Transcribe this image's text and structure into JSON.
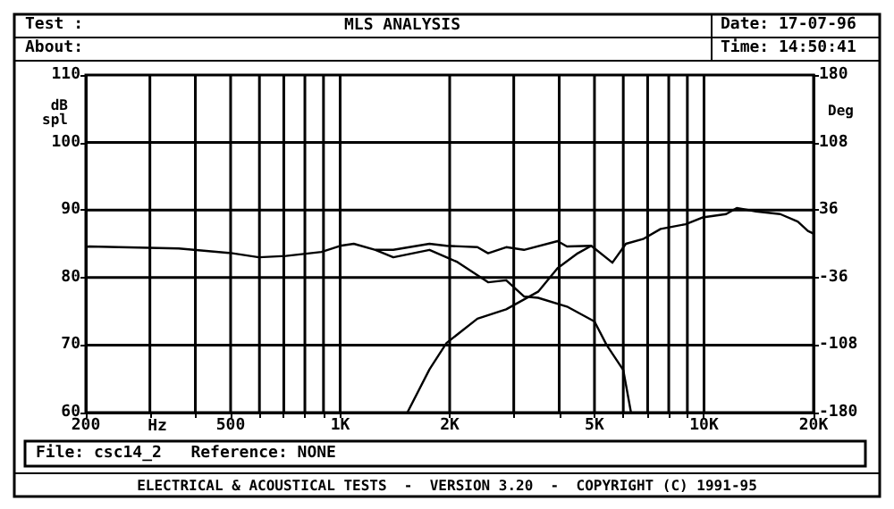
{
  "chart_data": {
    "type": "line",
    "title": "MLS ANALYSIS",
    "xlabel": "Hz",
    "ylabel": "dB spl",
    "y2label": "Deg",
    "annotations": [
      "Test :",
      "About:",
      "Date: 17-07-96",
      "Time: 14:50:41",
      "File: csc14_2   Reference: NONE",
      "ELECTRICAL & ACOUSTICAL TESTS  -  VERSION 3.20  -  COPYRIGHT (C) 1991-95"
    ],
    "log": "x",
    "grid": true,
    "marker": "none",
    "line_style": "solid",
    "xlim": [
      200,
      20000
    ],
    "xticks": [
      200,
      {
        "value": 300,
        "label": null
      },
      {
        "value": 400,
        "label": null
      },
      500,
      {
        "value": 600,
        "label": null
      },
      {
        "value": 700,
        "label": null
      },
      {
        "value": 800,
        "label": null
      },
      {
        "value": 900,
        "label": null
      },
      {
        "value": 1000,
        "label": "1K"
      },
      {
        "value": 2000,
        "label": "2K"
      },
      {
        "value": 3000,
        "label": null
      },
      {
        "value": 4000,
        "label": null
      },
      {
        "value": 5000,
        "label": "5K"
      },
      {
        "value": 6000,
        "label": null
      },
      {
        "value": 7000,
        "label": null
      },
      {
        "value": 8000,
        "label": null
      },
      {
        "value": 9000,
        "label": null
      },
      {
        "value": 10000,
        "label": "10K"
      },
      {
        "value": 20000,
        "label": "20K"
      }
    ],
    "ylim": [
      60,
      110
    ],
    "yticks": [
      60,
      70,
      80,
      90,
      100,
      110
    ],
    "y2lim": [
      -180,
      180
    ],
    "y2ticks": [
      -180,
      -108,
      -36,
      36,
      108,
      180
    ],
    "series": [
      {
        "color": "#000000",
        "x": [
          200,
          204,
          360,
          506,
          598,
          709,
          889,
          1000,
          1090,
          1250,
          1400,
          1760,
          1960,
          2384,
          2550,
          2860,
          3200,
          3960,
          4200,
          4900,
          5600,
          6100,
          6800,
          7600,
          8900,
          9900,
          11500,
          12300,
          13900,
          16200,
          18100,
          19300,
          20000
        ],
        "values": [
          84.5,
          84.6,
          84.3,
          83.6,
          83,
          83.2,
          83.8,
          84.7,
          85,
          84.1,
          84.1,
          85,
          84.7,
          84.5,
          83.6,
          84.5,
          84.1,
          85.4,
          84.6,
          84.7,
          82.2,
          85,
          85.7,
          87.2,
          87.9,
          88.9,
          89.4,
          90.3,
          89.8,
          89.4,
          88.3,
          86.9,
          86.5
        ]
      },
      {
        "color": "#000000",
        "x": [
          1250,
          1400,
          1760,
          1960,
          2100,
          2550,
          2860,
          3200,
          3500,
          4200,
          5000,
          5400,
          6000,
          6300
        ],
        "values": [
          84.1,
          83,
          84.1,
          83,
          82.3,
          79.3,
          79.6,
          77.2,
          77,
          75.7,
          73.5,
          70,
          66.3,
          60
        ]
      },
      {
        "color": "#000000",
        "x": [
          1530,
          1760,
          1960,
          2384,
          2860,
          3500,
          3960,
          4500,
          4900
        ],
        "values": [
          60,
          66.4,
          70.3,
          73.9,
          75.3,
          77.9,
          81.4,
          83.6,
          84.7
        ]
      }
    ]
  }
}
